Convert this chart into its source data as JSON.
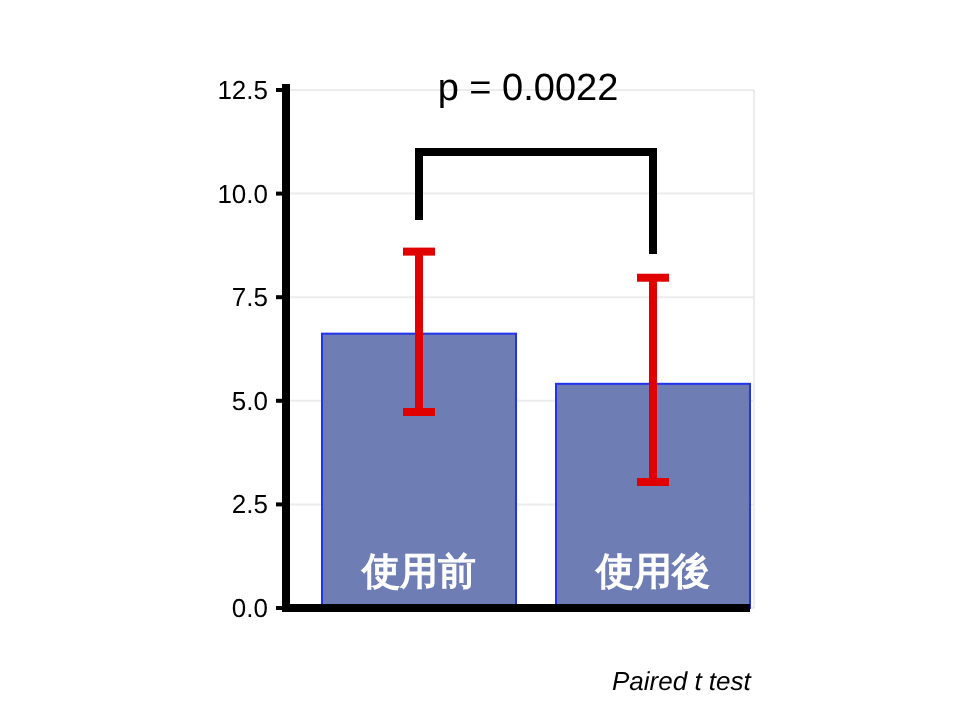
{
  "chart_data": {
    "type": "bar",
    "categories": [
      "使用前",
      "使用後"
    ],
    "values": [
      6.62,
      5.41
    ],
    "errors": [
      [
        4.73,
        8.6
      ],
      [
        3.04,
        7.97
      ]
    ],
    "color": "#6f7db5",
    "ylim": [
      0,
      12.5
    ],
    "yticks": [
      {
        "value": 0,
        "label": "0.0"
      },
      {
        "value": 2.5,
        "label": "2.5"
      },
      {
        "value": 5,
        "label": "5.0"
      },
      {
        "value": 7.5,
        "label": "7.5"
      },
      {
        "value": 10,
        "label": "10.0"
      },
      {
        "value": 12.5,
        "label": "12.5"
      }
    ],
    "grid": "y",
    "annotations": [
      "p = 0.0022",
      "Paired t test"
    ]
  }
}
